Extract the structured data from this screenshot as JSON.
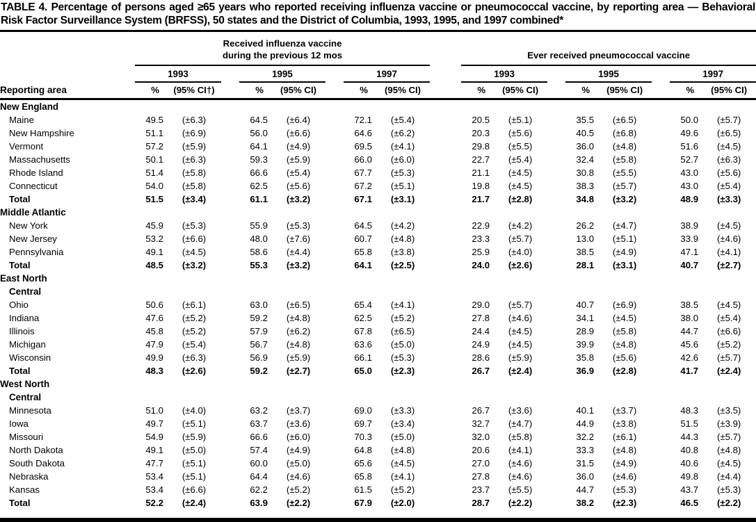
{
  "title": "TABLE 4. Percentage of persons aged ≥65 years who reported receiving influenza vaccine or pneumococcal vaccine, by reporting area — Behavioral Risk Factor Surveillance System (BRFSS), 50 states and the District of Columbia, 1993, 1995, and 1997 combined*",
  "table": {
    "area_header": "Reporting area",
    "pct_header": "%",
    "sections": [
      {
        "label": "Received influenza vaccine\nduring the previous 12 mos",
        "years": [
          "1993",
          "1995",
          "1997"
        ],
        "ci_headers": [
          "(95% CI†)",
          "(95% CI)",
          "(95% CI)"
        ]
      },
      {
        "label": "Ever received pneumococcal vaccine",
        "years": [
          "1993",
          "1995",
          "1997"
        ],
        "ci_headers": [
          "(95% CI)",
          "(95% CI)",
          "(95% CI)"
        ]
      }
    ],
    "groups": [
      {
        "name": "New England",
        "rows": [
          {
            "area": "Maine",
            "values": [
              "49.5",
              "(±6.3)",
              "64.5",
              "(±6.4)",
              "72.1",
              "(±5.4)",
              "20.5",
              "(±5.1)",
              "35.5",
              "(±6.5)",
              "50.0",
              "(±5.7)"
            ]
          },
          {
            "area": "New Hampshire",
            "values": [
              "51.1",
              "(±6.9)",
              "56.0",
              "(±6.6)",
              "64.6",
              "(±6.2)",
              "20.3",
              "(±5.6)",
              "40.5",
              "(±6.8)",
              "49.6",
              "(±6.5)"
            ]
          },
          {
            "area": "Vermont",
            "values": [
              "57.2",
              "(±5.9)",
              "64.1",
              "(±4.9)",
              "69.5",
              "(±4.1)",
              "29.8",
              "(±5.5)",
              "36.0",
              "(±4.8)",
              "51.6",
              "(±4.5)"
            ]
          },
          {
            "area": "Massachusetts",
            "values": [
              "50.1",
              "(±6.3)",
              "59.3",
              "(±5.9)",
              "66.0",
              "(±6.0)",
              "22.7",
              "(±5.4)",
              "32.4",
              "(±5.8)",
              "52.7",
              "(±6.3)"
            ]
          },
          {
            "area": "Rhode Island",
            "values": [
              "51.4",
              "(±5.8)",
              "66.6",
              "(±5.4)",
              "67.7",
              "(±5.3)",
              "21.1",
              "(±4.5)",
              "30.8",
              "(±5.5)",
              "43.0",
              "(±5.6)"
            ]
          },
          {
            "area": "Connecticut",
            "values": [
              "54.0",
              "(±5.8)",
              "62.5",
              "(±5.6)",
              "67.2",
              "(±5.1)",
              "19.8",
              "(±4.5)",
              "38.3",
              "(±5.7)",
              "43.0",
              "(±5.4)"
            ]
          },
          {
            "area": "Total",
            "bold": true,
            "values": [
              "51.5",
              "(±3.4)",
              "61.1",
              "(±3.2)",
              "67.1",
              "(±3.1)",
              "21.7",
              "(±2.8)",
              "34.8",
              "(±3.2)",
              "48.9",
              "(±3.3)"
            ]
          }
        ]
      },
      {
        "name": "Middle Atlantic",
        "rows": [
          {
            "area": "New York",
            "values": [
              "45.9",
              "(±5.3)",
              "55.9",
              "(±5.3)",
              "64.5",
              "(±4.2)",
              "22.9",
              "(±4.2)",
              "26.2",
              "(±4.7)",
              "38.9",
              "(±4.5)"
            ]
          },
          {
            "area": "New Jersey",
            "values": [
              "53.2",
              "(±6.6)",
              "48.0",
              "(±7.6)",
              "60.7",
              "(±4.8)",
              "23.3",
              "(±5.7)",
              "13.0",
              "(±5.1)",
              "33.9",
              "(±4.6)"
            ]
          },
          {
            "area": "Pennsylvania",
            "values": [
              "49.1",
              "(±4.5)",
              "58.6",
              "(±4.4)",
              "65.8",
              "(±3.8)",
              "25.9",
              "(±4.0)",
              "38.5",
              "(±4.9)",
              "47.1",
              "(±4.1)"
            ]
          },
          {
            "area": "Total",
            "bold": true,
            "values": [
              "48.5",
              "(±3.2)",
              "55.3",
              "(±3.2)",
              "64.1",
              "(±2.5)",
              "24.0",
              "(±2.6)",
              "28.1",
              "(±3.1)",
              "40.7",
              "(±2.7)"
            ]
          }
        ]
      },
      {
        "name": "East North\nCentral",
        "rows": [
          {
            "area": "Ohio",
            "values": [
              "50.6",
              "(±6.1)",
              "63.0",
              "(±6.5)",
              "65.4",
              "(±4.1)",
              "29.0",
              "(±5.7)",
              "40.7",
              "(±6.9)",
              "38.5",
              "(±4.5)"
            ]
          },
          {
            "area": "Indiana",
            "values": [
              "47.6",
              "(±5.2)",
              "59.2",
              "(±4.8)",
              "62.5",
              "(±5.2)",
              "27.8",
              "(±4.6)",
              "34.1",
              "(±4.5)",
              "38.0",
              "(±5.4)"
            ]
          },
          {
            "area": "Illinois",
            "values": [
              "45.8",
              "(±5.2)",
              "57.9",
              "(±6.2)",
              "67.8",
              "(±6.5)",
              "24.4",
              "(±4.5)",
              "28.9",
              "(±5.8)",
              "44.7",
              "(±6.6)"
            ]
          },
          {
            "area": "Michigan",
            "values": [
              "47.9",
              "(±5.4)",
              "56.7",
              "(±4.8)",
              "63.6",
              "(±5.0)",
              "24.9",
              "(±4.5)",
              "39.9",
              "(±4.8)",
              "45.6",
              "(±5.2)"
            ]
          },
          {
            "area": "Wisconsin",
            "values": [
              "49.9",
              "(±6.3)",
              "56.9",
              "(±5.9)",
              "66.1",
              "(±5.3)",
              "28.6",
              "(±5.9)",
              "35.8",
              "(±5.6)",
              "42.6",
              "(±5.7)"
            ]
          },
          {
            "area": "Total",
            "bold": true,
            "values": [
              "48.3",
              "(±2.6)",
              "59.2",
              "(±2.7)",
              "65.0",
              "(±2.3)",
              "26.7",
              "(±2.4)",
              "36.9",
              "(±2.8)",
              "41.7",
              "(±2.4)"
            ]
          }
        ]
      },
      {
        "name": "West North\nCentral",
        "rows": [
          {
            "area": "Minnesota",
            "values": [
              "51.0",
              "(±4.0)",
              "63.2",
              "(±3.7)",
              "69.0",
              "(±3.3)",
              "26.7",
              "(±3.6)",
              "40.1",
              "(±3.7)",
              "48.3",
              "(±3.5)"
            ]
          },
          {
            "area": "Iowa",
            "values": [
              "49.7",
              "(±5.1)",
              "63.7",
              "(±3.6)",
              "69.7",
              "(±3.4)",
              "32.7",
              "(±4.7)",
              "44.9",
              "(±3.8)",
              "51.5",
              "(±3.9)"
            ]
          },
          {
            "area": "Missouri",
            "values": [
              "54.9",
              "(±5.9)",
              "66.6",
              "(±6.0)",
              "70.3",
              "(±5.0)",
              "32.0",
              "(±5.8)",
              "32.2",
              "(±6.1)",
              "44.3",
              "(±5.7)"
            ]
          },
          {
            "area": "North Dakota",
            "values": [
              "49.1",
              "(±5.0)",
              "57.4",
              "(±4.9)",
              "64.8",
              "(±4.8)",
              "20.6",
              "(±4.1)",
              "33.3",
              "(±4.8)",
              "40.8",
              "(±4.8)"
            ]
          },
          {
            "area": "South Dakota",
            "values": [
              "47.7",
              "(±5.1)",
              "60.0",
              "(±5.0)",
              "65.6",
              "(±4.5)",
              "27.0",
              "(±4.6)",
              "31.5",
              "(±4.9)",
              "40.6",
              "(±4.5)"
            ]
          },
          {
            "area": "Nebraska",
            "values": [
              "53.4",
              "(±5.1)",
              "64.4",
              "(±4.6)",
              "65.8",
              "(±4.1)",
              "27.8",
              "(±4.6)",
              "36.0",
              "(±4.6)",
              "49.8",
              "(±4.4)"
            ]
          },
          {
            "area": "Kansas",
            "values": [
              "53.4",
              "(±6.6)",
              "62.2",
              "(±5.2)",
              "61.5",
              "(±5.2)",
              "23.7",
              "(±5.5)",
              "44.7",
              "(±5.3)",
              "43.7",
              "(±5.3)"
            ]
          },
          {
            "area": "Total",
            "bold": true,
            "values": [
              "52.2",
              "(±2.4)",
              "63.9",
              "(±2.2)",
              "67.9",
              "(±2.0)",
              "28.7",
              "(±2.2)",
              "38.2",
              "(±2.3)",
              "46.5",
              "(±2.2)"
            ]
          }
        ]
      }
    ]
  }
}
